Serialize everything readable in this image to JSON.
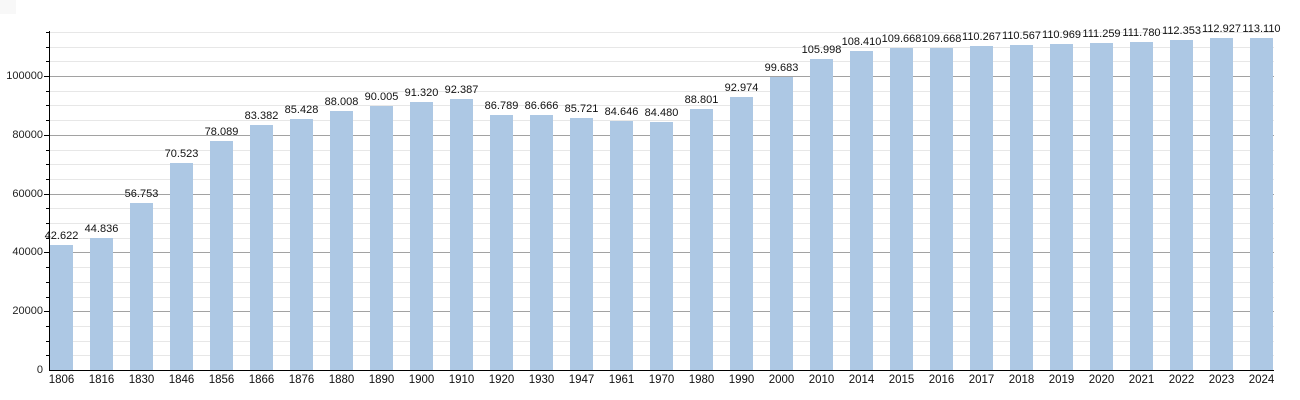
{
  "chart_data": {
    "type": "bar",
    "title": "",
    "xlabel": "",
    "ylabel": "",
    "categories": [
      "1806",
      "1816",
      "1830",
      "1846",
      "1856",
      "1866",
      "1876",
      "1880",
      "1890",
      "1900",
      "1910",
      "1920",
      "1930",
      "1947",
      "1961",
      "1970",
      "1980",
      "1990",
      "2000",
      "2010",
      "2014",
      "2015",
      "2016",
      "2017",
      "2018",
      "2019",
      "2020",
      "2021",
      "2022",
      "2023",
      "2024"
    ],
    "values": [
      42622,
      44836,
      56753,
      70523,
      78089,
      83382,
      85428,
      88008,
      90005,
      91320,
      92387,
      86789,
      86666,
      85721,
      84646,
      84480,
      88801,
      92974,
      99683,
      105998,
      108410,
      109668,
      109668,
      110267,
      110567,
      110969,
      111259,
      111780,
      112353,
      112927,
      113110
    ],
    "value_labels": [
      "42.622",
      "44.836",
      "56.753",
      "70.523",
      "78.089",
      "83.382",
      "85.428",
      "88.008",
      "90.005",
      "91.320",
      "92.387",
      "86.789",
      "86.666",
      "85.721",
      "84.646",
      "84.480",
      "88.801",
      "92.974",
      "99.683",
      "105.998",
      "108.410",
      "109.668",
      "109.668",
      "110.267",
      "110.567",
      "110.969",
      "111.259",
      "111.780",
      "112.353",
      "112.927",
      "113.110"
    ],
    "y_ticks": [
      0,
      20000,
      40000,
      60000,
      80000,
      100000
    ],
    "y_tick_labels": [
      "0",
      "20000",
      "40000",
      "60000",
      "80000",
      "100000"
    ],
    "ylim": [
      0,
      115000
    ],
    "grid": {
      "show": true,
      "minor_step": 5000,
      "major_step": 20000
    },
    "legend": {
      "show": false
    },
    "colors": {
      "bar": "#adc8e4",
      "grid_major": "#a2a2a2",
      "grid_minor": "#e7e7e7",
      "axis": "#000000",
      "text": "#111111"
    }
  }
}
